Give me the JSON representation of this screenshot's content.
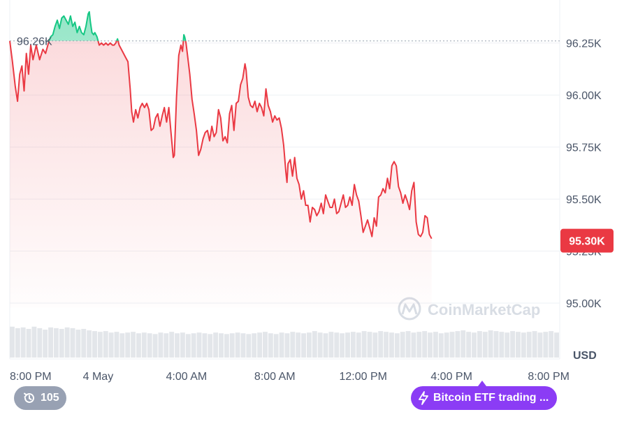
{
  "chart_data": {
    "type": "area",
    "currency_label": "USD",
    "y_ticks": [
      "95.00K",
      "95.25K",
      "95.50K",
      "95.75K",
      "96.00K",
      "96.25K"
    ],
    "y_tick_values": [
      95.0,
      95.25,
      95.5,
      95.75,
      96.0,
      96.25
    ],
    "ylim": [
      94.98,
      96.43
    ],
    "x_tick_labels": [
      "8:00 PM",
      "4 May",
      "4:00 AM",
      "8:00 AM",
      "12:00 PM",
      "4:00 PM",
      "8:00 PM"
    ],
    "x_tick_hours": [
      0,
      4,
      8,
      12,
      16,
      20,
      24
    ],
    "xlim_hours": [
      0,
      24.9
    ],
    "reference": {
      "label": "96.26K",
      "value": 96.26
    },
    "current": {
      "label": "95.30K",
      "value": 95.3
    },
    "colors": {
      "up": "#16c784",
      "down": "#ea3943",
      "grid": "#eef0f4",
      "volume": "#e3e6ea"
    },
    "series": [
      {
        "values": [
          [
            0.0,
            96.26
          ],
          [
            0.12,
            96.16
          ],
          [
            0.25,
            96.04
          ],
          [
            0.35,
            95.97
          ],
          [
            0.45,
            96.1
          ],
          [
            0.55,
            96.14
          ],
          [
            0.65,
            96.02
          ],
          [
            0.75,
            96.2
          ],
          [
            0.85,
            96.1
          ],
          [
            0.95,
            96.24
          ],
          [
            1.05,
            96.17
          ],
          [
            1.2,
            96.24
          ],
          [
            1.35,
            96.17
          ],
          [
            1.5,
            96.22
          ],
          [
            1.62,
            96.2
          ],
          [
            1.75,
            96.25
          ],
          [
            1.85,
            96.28
          ],
          [
            1.95,
            96.29
          ],
          [
            2.05,
            96.33
          ],
          [
            2.15,
            96.36
          ],
          [
            2.25,
            96.32
          ],
          [
            2.35,
            96.37
          ],
          [
            2.45,
            96.38
          ],
          [
            2.55,
            96.36
          ],
          [
            2.65,
            96.34
          ],
          [
            2.75,
            96.38
          ],
          [
            2.85,
            96.33
          ],
          [
            2.95,
            96.35
          ],
          [
            3.05,
            96.3
          ],
          [
            3.15,
            96.33
          ],
          [
            3.25,
            96.3
          ],
          [
            3.35,
            96.29
          ],
          [
            3.45,
            96.33
          ],
          [
            3.55,
            96.39
          ],
          [
            3.6,
            96.4
          ],
          [
            3.65,
            96.35
          ],
          [
            3.72,
            96.3
          ],
          [
            3.8,
            96.29
          ],
          [
            3.85,
            96.3
          ],
          [
            3.95,
            96.28
          ],
          [
            4.05,
            96.24
          ],
          [
            4.15,
            96.25
          ],
          [
            4.25,
            96.24
          ],
          [
            4.35,
            96.25
          ],
          [
            4.45,
            96.24
          ],
          [
            4.55,
            96.25
          ],
          [
            4.65,
            96.24
          ],
          [
            4.72,
            96.24
          ],
          [
            4.8,
            96.25
          ],
          [
            4.88,
            96.27
          ],
          [
            4.95,
            96.24
          ],
          [
            5.1,
            96.21
          ],
          [
            5.25,
            96.18
          ],
          [
            5.35,
            96.16
          ],
          [
            5.45,
            96.03
          ],
          [
            5.52,
            95.92
          ],
          [
            5.6,
            95.87
          ],
          [
            5.7,
            95.93
          ],
          [
            5.8,
            95.89
          ],
          [
            5.9,
            95.94
          ],
          [
            6.0,
            95.96
          ],
          [
            6.1,
            95.94
          ],
          [
            6.2,
            95.96
          ],
          [
            6.3,
            95.93
          ],
          [
            6.4,
            95.83
          ],
          [
            6.5,
            95.84
          ],
          [
            6.6,
            95.89
          ],
          [
            6.7,
            95.91
          ],
          [
            6.8,
            95.85
          ],
          [
            6.9,
            95.9
          ],
          [
            7.0,
            95.94
          ],
          [
            7.1,
            95.87
          ],
          [
            7.2,
            95.94
          ],
          [
            7.3,
            95.82
          ],
          [
            7.4,
            95.7
          ],
          [
            7.45,
            95.71
          ],
          [
            7.55,
            95.99
          ],
          [
            7.65,
            96.19
          ],
          [
            7.75,
            96.24
          ],
          [
            7.82,
            96.21
          ],
          [
            7.88,
            96.29
          ],
          [
            7.92,
            96.28
          ],
          [
            7.98,
            96.25
          ],
          [
            8.05,
            96.19
          ],
          [
            8.15,
            96.1
          ],
          [
            8.25,
            95.98
          ],
          [
            8.35,
            95.91
          ],
          [
            8.45,
            95.83
          ],
          [
            8.55,
            95.71
          ],
          [
            8.65,
            95.74
          ],
          [
            8.75,
            95.79
          ],
          [
            8.85,
            95.82
          ],
          [
            8.95,
            95.83
          ],
          [
            9.05,
            95.78
          ],
          [
            9.15,
            95.85
          ],
          [
            9.25,
            95.8
          ],
          [
            9.35,
            95.82
          ],
          [
            9.45,
            95.93
          ],
          [
            9.55,
            95.89
          ],
          [
            9.65,
            95.78
          ],
          [
            9.75,
            95.8
          ],
          [
            9.85,
            95.77
          ],
          [
            9.95,
            95.91
          ],
          [
            10.05,
            95.95
          ],
          [
            10.15,
            95.83
          ],
          [
            10.25,
            95.96
          ],
          [
            10.35,
            95.97
          ],
          [
            10.45,
            96.05
          ],
          [
            10.55,
            96.08
          ],
          [
            10.65,
            96.15
          ],
          [
            10.7,
            96.12
          ],
          [
            10.8,
            95.99
          ],
          [
            10.9,
            95.95
          ],
          [
            11.0,
            95.94
          ],
          [
            11.1,
            95.97
          ],
          [
            11.2,
            95.92
          ],
          [
            11.3,
            95.96
          ],
          [
            11.4,
            95.94
          ],
          [
            11.5,
            95.9
          ],
          [
            11.6,
            96.03
          ],
          [
            11.7,
            95.95
          ],
          [
            11.8,
            95.92
          ],
          [
            11.9,
            95.87
          ],
          [
            12.0,
            95.9
          ],
          [
            12.1,
            95.88
          ],
          [
            12.2,
            95.89
          ],
          [
            12.3,
            95.84
          ],
          [
            12.4,
            95.76
          ],
          [
            12.5,
            95.63
          ],
          [
            12.55,
            95.58
          ],
          [
            12.6,
            95.67
          ],
          [
            12.7,
            95.69
          ],
          [
            12.8,
            95.61
          ],
          [
            12.9,
            95.7
          ],
          [
            13.0,
            95.6
          ],
          [
            13.1,
            95.57
          ],
          [
            13.2,
            95.5
          ],
          [
            13.3,
            95.54
          ],
          [
            13.4,
            95.47
          ],
          [
            13.5,
            95.47
          ],
          [
            13.6,
            95.39
          ],
          [
            13.7,
            95.46
          ],
          [
            13.8,
            95.45
          ],
          [
            13.9,
            95.42
          ],
          [
            14.0,
            95.44
          ],
          [
            14.1,
            95.48
          ],
          [
            14.2,
            95.43
          ],
          [
            14.3,
            95.52
          ],
          [
            14.4,
            95.49
          ],
          [
            14.5,
            95.46
          ],
          [
            14.6,
            95.46
          ],
          [
            14.7,
            95.5
          ],
          [
            14.8,
            95.43
          ],
          [
            14.9,
            95.44
          ],
          [
            15.0,
            95.48
          ],
          [
            15.1,
            95.52
          ],
          [
            15.2,
            95.46
          ],
          [
            15.3,
            95.47
          ],
          [
            15.4,
            95.51
          ],
          [
            15.5,
            95.47
          ],
          [
            15.6,
            95.57
          ],
          [
            15.7,
            95.52
          ],
          [
            15.8,
            95.49
          ],
          [
            15.9,
            95.42
          ],
          [
            16.0,
            95.34
          ],
          [
            16.1,
            95.37
          ],
          [
            16.2,
            95.4
          ],
          [
            16.3,
            95.36
          ],
          [
            16.4,
            95.32
          ],
          [
            16.5,
            95.41
          ],
          [
            16.6,
            95.37
          ],
          [
            16.7,
            95.51
          ],
          [
            16.8,
            95.52
          ],
          [
            16.9,
            95.55
          ],
          [
            17.0,
            95.53
          ],
          [
            17.1,
            95.6
          ],
          [
            17.2,
            95.55
          ],
          [
            17.3,
            95.66
          ],
          [
            17.4,
            95.68
          ],
          [
            17.5,
            95.66
          ],
          [
            17.6,
            95.56
          ],
          [
            17.7,
            95.53
          ],
          [
            17.8,
            95.48
          ],
          [
            17.9,
            95.52
          ],
          [
            18.0,
            95.49
          ],
          [
            18.1,
            95.45
          ],
          [
            18.2,
            95.54
          ],
          [
            18.3,
            95.58
          ],
          [
            18.4,
            95.39
          ],
          [
            18.5,
            95.33
          ],
          [
            18.6,
            95.32
          ],
          [
            18.7,
            95.34
          ],
          [
            18.8,
            95.42
          ],
          [
            18.9,
            95.41
          ],
          [
            19.0,
            95.33
          ],
          [
            19.1,
            95.31
          ]
        ]
      }
    ],
    "volume": [
      0.42,
      0.4,
      0.41,
      0.39,
      0.42,
      0.4,
      0.38,
      0.41,
      0.4,
      0.39,
      0.41,
      0.4,
      0.38,
      0.39,
      0.37,
      0.36,
      0.35,
      0.36,
      0.34,
      0.35,
      0.33,
      0.34,
      0.35,
      0.33,
      0.34,
      0.33,
      0.32,
      0.34,
      0.33,
      0.35,
      0.33,
      0.34,
      0.32,
      0.33,
      0.34,
      0.33,
      0.32,
      0.34,
      0.33,
      0.32,
      0.33,
      0.34,
      0.33,
      0.32,
      0.33,
      0.34,
      0.35,
      0.33,
      0.32,
      0.34,
      0.33,
      0.35,
      0.34,
      0.33,
      0.34,
      0.36,
      0.34,
      0.33,
      0.35,
      0.34,
      0.33,
      0.34,
      0.35,
      0.34,
      0.36,
      0.35,
      0.34,
      0.36,
      0.35,
      0.34,
      0.33,
      0.35,
      0.36,
      0.34,
      0.35,
      0.36,
      0.34,
      0.35,
      0.33,
      0.34,
      0.35,
      0.36,
      0.37,
      0.35,
      0.34,
      0.36,
      0.35,
      0.37,
      0.36,
      0.35,
      0.34,
      0.36,
      0.35,
      0.34,
      0.35,
      0.36,
      0.34,
      0.35,
      0.36,
      0.34
    ]
  },
  "watermark": "CoinMarketCap",
  "history_pill": {
    "icon": "history-icon",
    "count": "105"
  },
  "news_pill": {
    "icon": "lightning-icon",
    "text": "Bitcoin ETF trading ..."
  }
}
